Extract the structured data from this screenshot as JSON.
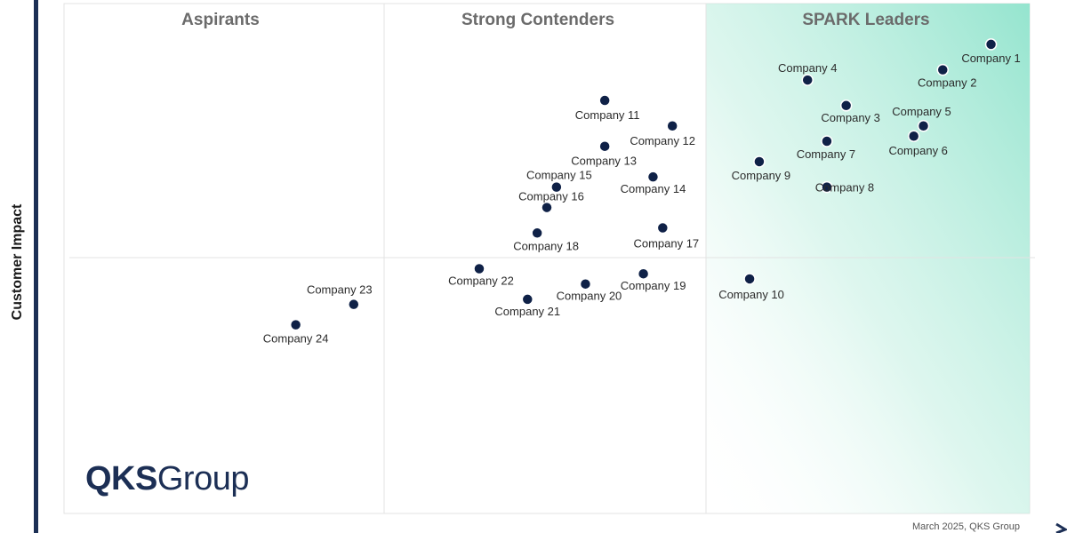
{
  "chart_data": {
    "type": "scatter",
    "title": "",
    "ylabel": "Customer Impact",
    "xlabel": "",
    "quadrants": [
      "Aspirants",
      "Strong Contenders",
      "SPARK Leaders"
    ],
    "note": "March 2025, QKS Group",
    "logo": {
      "bold": "QKS",
      "light": "Group"
    },
    "colors": {
      "dot": "#0f2147",
      "axis": "#1c2f55",
      "leader_tint": "#8fe3cc",
      "grid": "#e3e3e3"
    },
    "grid": true,
    "points": [
      {
        "name": "Company 1",
        "x": 96,
        "y": 92
      },
      {
        "name": "Company 2",
        "x": 91,
        "y": 87
      },
      {
        "name": "Company 3",
        "x": 81,
        "y": 80
      },
      {
        "name": "Company 4",
        "x": 77,
        "y": 85
      },
      {
        "name": "Company 5",
        "x": 89,
        "y": 76
      },
      {
        "name": "Company 6",
        "x": 88,
        "y": 74
      },
      {
        "name": "Company 7",
        "x": 79,
        "y": 73
      },
      {
        "name": "Company 8",
        "x": 79,
        "y": 64
      },
      {
        "name": "Company 9",
        "x": 72,
        "y": 69
      },
      {
        "name": "Company 10",
        "x": 71,
        "y": 46
      },
      {
        "name": "Company 11",
        "x": 56,
        "y": 81
      },
      {
        "name": "Company 12",
        "x": 63,
        "y": 76
      },
      {
        "name": "Company 13",
        "x": 56,
        "y": 72
      },
      {
        "name": "Company 14",
        "x": 61,
        "y": 66
      },
      {
        "name": "Company 15",
        "x": 51,
        "y": 64
      },
      {
        "name": "Company 16",
        "x": 50,
        "y": 60
      },
      {
        "name": "Company 17",
        "x": 62,
        "y": 56
      },
      {
        "name": "Company 18",
        "x": 49,
        "y": 55
      },
      {
        "name": "Company 19",
        "x": 60,
        "y": 47
      },
      {
        "name": "Company 20",
        "x": 54,
        "y": 45
      },
      {
        "name": "Company 21",
        "x": 48,
        "y": 42
      },
      {
        "name": "Company 22",
        "x": 43,
        "y": 48
      },
      {
        "name": "Company 23",
        "x": 30,
        "y": 41
      },
      {
        "name": "Company 24",
        "x": 24,
        "y": 37
      }
    ]
  }
}
